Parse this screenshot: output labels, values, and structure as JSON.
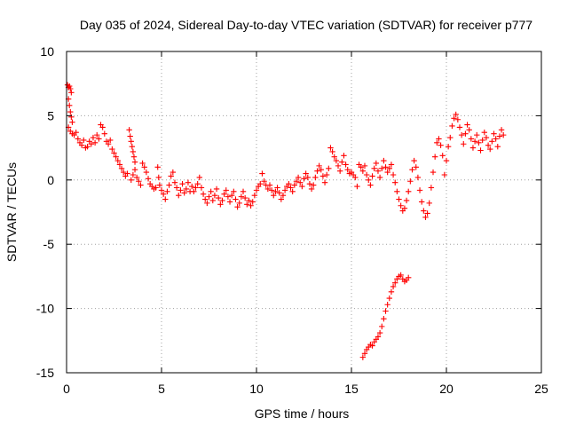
{
  "chart_data": {
    "type": "scatter",
    "title": "Day 035 of 2024, Sidereal Day-to-day VTEC variation (SDTVAR) for receiver p777",
    "xlabel": "GPS time / hours",
    "ylabel": "SDTVAR / TECUs",
    "xlim": [
      0,
      25
    ],
    "ylim": [
      -15,
      10
    ],
    "xticks": [
      0,
      5,
      10,
      15,
      20,
      25
    ],
    "xtick_labels": [
      "0",
      "5",
      "10",
      "15",
      "20",
      "25"
    ],
    "yticks": [
      10,
      5,
      0,
      -5,
      -10,
      -15
    ],
    "ytick_labels": [
      "10",
      "5",
      "0",
      "-5",
      "-10",
      "-15"
    ],
    "grid": true,
    "marker": "plus",
    "color": "#ff0000",
    "series": [
      {
        "name": "SDTVAR",
        "points": [
          [
            0.05,
            7.4
          ],
          [
            0.1,
            7.2
          ],
          [
            0.15,
            7.3
          ],
          [
            0.2,
            7.1
          ],
          [
            0.25,
            6.8
          ],
          [
            0.1,
            6.3
          ],
          [
            0.15,
            5.8
          ],
          [
            0.2,
            5.3
          ],
          [
            0.25,
            4.9
          ],
          [
            0.3,
            4.5
          ],
          [
            0.1,
            4.1
          ],
          [
            0.2,
            3.8
          ],
          [
            0.3,
            3.6
          ],
          [
            0.4,
            3.5
          ],
          [
            0.5,
            3.7
          ],
          [
            0.6,
            3.2
          ],
          [
            0.7,
            2.9
          ],
          [
            0.8,
            2.7
          ],
          [
            0.9,
            3.1
          ],
          [
            1.0,
            2.5
          ],
          [
            1.1,
            2.6
          ],
          [
            1.2,
            3.0
          ],
          [
            1.3,
            2.8
          ],
          [
            1.4,
            3.3
          ],
          [
            1.5,
            2.9
          ],
          [
            1.6,
            3.5
          ],
          [
            1.7,
            3.2
          ],
          [
            1.8,
            4.3
          ],
          [
            1.9,
            4.1
          ],
          [
            2.0,
            3.6
          ],
          [
            2.1,
            3.0
          ],
          [
            2.2,
            2.8
          ],
          [
            2.3,
            3.1
          ],
          [
            2.4,
            2.4
          ],
          [
            2.5,
            2.1
          ],
          [
            2.6,
            1.8
          ],
          [
            2.7,
            1.5
          ],
          [
            2.8,
            1.2
          ],
          [
            2.9,
            0.9
          ],
          [
            3.0,
            0.6
          ],
          [
            3.1,
            0.3
          ],
          [
            3.2,
            0.5
          ],
          [
            3.3,
            3.9
          ],
          [
            3.35,
            3.4
          ],
          [
            3.4,
            3.0
          ],
          [
            3.45,
            2.6
          ],
          [
            3.5,
            2.2
          ],
          [
            3.55,
            1.8
          ],
          [
            3.6,
            1.4
          ],
          [
            3.4,
            0.0
          ],
          [
            3.5,
            0.4
          ],
          [
            3.6,
            0.8
          ],
          [
            3.7,
            0.2
          ],
          [
            3.8,
            -0.1
          ],
          [
            3.9,
            -0.4
          ],
          [
            4.0,
            1.3
          ],
          [
            4.1,
            1.0
          ],
          [
            4.2,
            0.6
          ],
          [
            4.3,
            0.1
          ],
          [
            4.4,
            -0.3
          ],
          [
            4.5,
            -0.5
          ],
          [
            4.6,
            -0.7
          ],
          [
            4.7,
            -0.6
          ],
          [
            4.8,
            1.0
          ],
          [
            4.85,
            0.2
          ],
          [
            4.9,
            -0.4
          ],
          [
            5.0,
            -0.8
          ],
          [
            5.1,
            -1.1
          ],
          [
            5.2,
            -1.5
          ],
          [
            5.3,
            -0.9
          ],
          [
            5.4,
            -0.4
          ],
          [
            5.5,
            0.3
          ],
          [
            5.6,
            0.6
          ],
          [
            5.7,
            -0.2
          ],
          [
            5.8,
            -0.6
          ],
          [
            5.9,
            -1.2
          ],
          [
            6.0,
            -0.8
          ],
          [
            6.1,
            -0.3
          ],
          [
            6.2,
            -1.0
          ],
          [
            6.3,
            -0.7
          ],
          [
            6.4,
            -0.2
          ],
          [
            6.5,
            -0.9
          ],
          [
            6.6,
            -0.5
          ],
          [
            6.7,
            -0.9
          ],
          [
            6.8,
            -0.6
          ],
          [
            6.9,
            -0.3
          ],
          [
            7.0,
            0.2
          ],
          [
            7.1,
            -0.6
          ],
          [
            7.2,
            -1.1
          ],
          [
            7.3,
            -1.5
          ],
          [
            7.4,
            -1.8
          ],
          [
            7.5,
            -1.3
          ],
          [
            7.6,
            -0.9
          ],
          [
            7.7,
            -1.6
          ],
          [
            7.8,
            -1.2
          ],
          [
            7.9,
            -0.7
          ],
          [
            8.0,
            -1.4
          ],
          [
            8.1,
            -1.9
          ],
          [
            8.2,
            -1.6
          ],
          [
            8.3,
            -1.1
          ],
          [
            8.4,
            -0.8
          ],
          [
            8.5,
            -1.3
          ],
          [
            8.6,
            -1.7
          ],
          [
            8.7,
            -1.2
          ],
          [
            8.8,
            -0.9
          ],
          [
            8.9,
            -1.5
          ],
          [
            9.0,
            -2.1
          ],
          [
            9.1,
            -1.8
          ],
          [
            9.2,
            -1.3
          ],
          [
            9.3,
            -0.9
          ],
          [
            9.4,
            -1.4
          ],
          [
            9.5,
            -1.9
          ],
          [
            9.6,
            -1.6
          ],
          [
            9.7,
            -2.0
          ],
          [
            9.8,
            -1.7
          ],
          [
            9.9,
            -1.2
          ],
          [
            10.0,
            -0.8
          ],
          [
            10.1,
            -0.5
          ],
          [
            10.2,
            -0.3
          ],
          [
            10.3,
            0.5
          ],
          [
            10.4,
            -0.1
          ],
          [
            10.5,
            -0.4
          ],
          [
            10.6,
            -0.7
          ],
          [
            10.7,
            -0.4
          ],
          [
            10.8,
            -0.8
          ],
          [
            10.9,
            -1.2
          ],
          [
            11.0,
            -0.9
          ],
          [
            11.1,
            -0.6
          ],
          [
            11.2,
            -1.0
          ],
          [
            11.3,
            -1.5
          ],
          [
            11.4,
            -1.2
          ],
          [
            11.5,
            -0.8
          ],
          [
            11.6,
            -0.5
          ],
          [
            11.7,
            -0.3
          ],
          [
            11.8,
            -0.6
          ],
          [
            11.9,
            -0.9
          ],
          [
            12.0,
            -0.4
          ],
          [
            12.1,
            -0.1
          ],
          [
            12.2,
            0.2
          ],
          [
            12.3,
            -0.2
          ],
          [
            12.4,
            -0.5
          ],
          [
            12.5,
            0.1
          ],
          [
            12.6,
            0.5
          ],
          [
            12.7,
            0.2
          ],
          [
            12.8,
            -0.3
          ],
          [
            12.9,
            -0.7
          ],
          [
            13.0,
            -0.4
          ],
          [
            13.1,
            0.2
          ],
          [
            13.2,
            0.7
          ],
          [
            13.3,
            1.1
          ],
          [
            13.4,
            0.8
          ],
          [
            13.5,
            0.3
          ],
          [
            13.6,
            -0.2
          ],
          [
            13.7,
            0.4
          ],
          [
            13.8,
            0.9
          ],
          [
            13.9,
            2.5
          ],
          [
            14.0,
            2.2
          ],
          [
            14.1,
            1.8
          ],
          [
            14.2,
            1.5
          ],
          [
            14.3,
            1.1
          ],
          [
            14.4,
            0.7
          ],
          [
            14.5,
            1.4
          ],
          [
            14.6,
            1.9
          ],
          [
            14.7,
            1.2
          ],
          [
            14.8,
            0.8
          ],
          [
            14.9,
            0.5
          ],
          [
            15.0,
            0.6
          ],
          [
            15.1,
            0.4
          ],
          [
            15.2,
            0.2
          ],
          [
            15.3,
            -0.5
          ],
          [
            15.4,
            1.2
          ],
          [
            15.5,
            1.0
          ],
          [
            15.6,
            0.7
          ],
          [
            15.7,
            1.1
          ],
          [
            15.8,
            0.4
          ],
          [
            15.9,
            0.0
          ],
          [
            16.0,
            -0.4
          ],
          [
            16.1,
            0.3
          ],
          [
            16.2,
            0.9
          ],
          [
            16.3,
            1.3
          ],
          [
            16.4,
            0.7
          ],
          [
            16.5,
            0.2
          ],
          [
            16.6,
            0.9
          ],
          [
            16.7,
            1.5
          ],
          [
            16.8,
            1.0
          ],
          [
            16.9,
            0.6
          ],
          [
            17.0,
            0.9
          ],
          [
            17.1,
            1.2
          ],
          [
            17.2,
            0.4
          ],
          [
            17.3,
            -0.2
          ],
          [
            17.4,
            -0.9
          ],
          [
            17.5,
            -1.5
          ],
          [
            17.6,
            -2.0
          ],
          [
            17.7,
            -2.4
          ],
          [
            17.8,
            -2.2
          ],
          [
            17.9,
            -1.6
          ],
          [
            18.0,
            -0.9
          ],
          [
            18.1,
            -0.1
          ],
          [
            18.2,
            0.8
          ],
          [
            18.3,
            1.5
          ],
          [
            18.4,
            1.0
          ],
          [
            18.5,
            0.2
          ],
          [
            18.6,
            -0.8
          ],
          [
            18.7,
            -1.7
          ],
          [
            18.8,
            -2.4
          ],
          [
            18.9,
            -2.9
          ],
          [
            19.0,
            -2.6
          ],
          [
            19.1,
            -1.8
          ],
          [
            19.2,
            -0.6
          ],
          [
            19.3,
            0.6
          ],
          [
            19.4,
            1.8
          ],
          [
            19.5,
            2.9
          ],
          [
            19.6,
            3.2
          ],
          [
            19.7,
            2.7
          ],
          [
            19.8,
            1.9
          ],
          [
            19.9,
            0.4
          ],
          [
            20.0,
            1.5
          ],
          [
            20.1,
            2.6
          ],
          [
            20.2,
            3.3
          ],
          [
            20.3,
            4.2
          ],
          [
            20.4,
            4.8
          ],
          [
            20.5,
            5.1
          ],
          [
            20.6,
            4.7
          ],
          [
            20.7,
            4.1
          ],
          [
            20.8,
            3.5
          ],
          [
            20.9,
            2.8
          ],
          [
            21.0,
            3.6
          ],
          [
            21.1,
            4.3
          ],
          [
            21.2,
            3.9
          ],
          [
            21.3,
            3.2
          ],
          [
            21.4,
            2.5
          ],
          [
            21.5,
            3.0
          ],
          [
            21.6,
            3.5
          ],
          [
            21.7,
            2.9
          ],
          [
            21.8,
            2.3
          ],
          [
            21.9,
            3.1
          ],
          [
            22.0,
            3.7
          ],
          [
            22.1,
            3.3
          ],
          [
            22.2,
            2.7
          ],
          [
            22.3,
            2.4
          ],
          [
            22.4,
            3.0
          ],
          [
            22.5,
            3.6
          ],
          [
            22.6,
            3.2
          ],
          [
            22.7,
            2.6
          ],
          [
            22.8,
            3.4
          ],
          [
            22.9,
            3.9
          ],
          [
            23.0,
            3.5
          ],
          [
            15.6,
            -13.8
          ],
          [
            15.7,
            -13.5
          ],
          [
            15.8,
            -13.2
          ],
          [
            15.9,
            -13.0
          ],
          [
            16.0,
            -12.8
          ],
          [
            16.1,
            -12.9
          ],
          [
            16.2,
            -12.6
          ],
          [
            16.3,
            -12.4
          ],
          [
            16.4,
            -12.2
          ],
          [
            16.5,
            -11.9
          ],
          [
            16.6,
            -11.4
          ],
          [
            16.7,
            -10.8
          ],
          [
            16.8,
            -10.2
          ],
          [
            16.9,
            -9.7
          ],
          [
            17.0,
            -9.2
          ],
          [
            17.1,
            -8.7
          ],
          [
            17.2,
            -8.3
          ],
          [
            17.3,
            -8.0
          ],
          [
            17.4,
            -7.7
          ],
          [
            17.5,
            -7.5
          ],
          [
            17.6,
            -7.4
          ],
          [
            17.7,
            -7.7
          ],
          [
            17.8,
            -7.9
          ],
          [
            17.9,
            -7.8
          ],
          [
            18.0,
            -7.6
          ]
        ]
      }
    ]
  }
}
